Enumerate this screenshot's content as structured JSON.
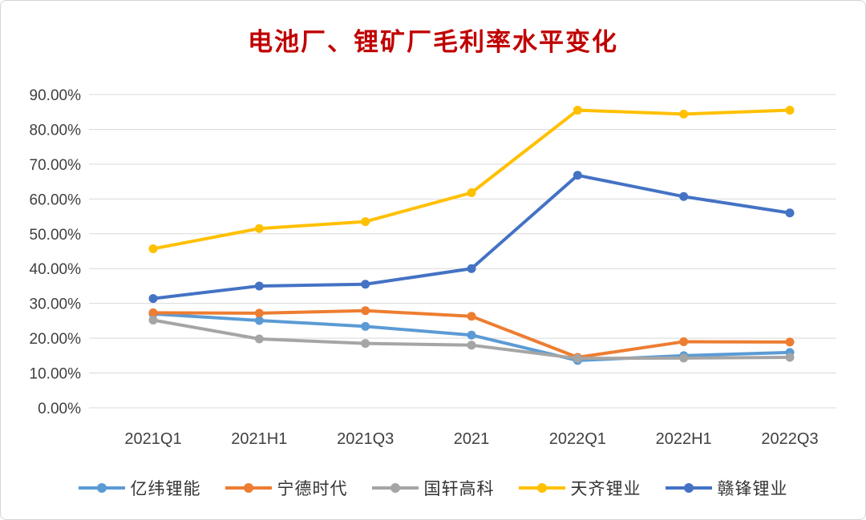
{
  "chart_data": {
    "type": "line",
    "title": "电池厂、锂矿厂毛利率水平变化",
    "title_color": "#C00000",
    "categories": [
      "2021Q1",
      "2021H1",
      "2021Q3",
      "2021",
      "2022Q1",
      "2022H1",
      "2022Q3"
    ],
    "xlabel": "",
    "ylabel": "",
    "ylim": [
      0,
      90
    ],
    "grid": "horizontal",
    "legend_position": "bottom",
    "gridline_color": "#D9D9D9",
    "y_ticks": [
      {
        "label": "0.00%",
        "value": 0
      },
      {
        "label": "10.00%",
        "value": 10
      },
      {
        "label": "20.00%",
        "value": 20
      },
      {
        "label": "30.00%",
        "value": 30
      },
      {
        "label": "40.00%",
        "value": 40
      },
      {
        "label": "50.00%",
        "value": 50
      },
      {
        "label": "60.00%",
        "value": 60
      },
      {
        "label": "70.00%",
        "value": 70
      },
      {
        "label": "80.00%",
        "value": 80
      },
      {
        "label": "90.00%",
        "value": 90
      }
    ],
    "series": [
      {
        "name": "亿纬锂能",
        "color": "#5B9BD5",
        "values": [
          27.0,
          25.1,
          23.4,
          20.9,
          13.6,
          15.0,
          15.9
        ]
      },
      {
        "name": "宁德时代",
        "color": "#ED7D31",
        "values": [
          27.3,
          27.2,
          27.9,
          26.3,
          14.5,
          19.0,
          18.9
        ]
      },
      {
        "name": "国轩高科",
        "color": "#A5A5A5",
        "values": [
          25.2,
          19.8,
          18.5,
          18.0,
          14.2,
          14.3,
          14.5
        ]
      },
      {
        "name": "天齐锂业",
        "color": "#FFC000",
        "values": [
          45.7,
          51.5,
          53.5,
          61.8,
          85.5,
          84.4,
          85.5
        ]
      },
      {
        "name": "赣锋锂业",
        "color": "#4472C4",
        "values": [
          31.4,
          35.0,
          35.5,
          40.0,
          66.8,
          60.7,
          56.0
        ]
      }
    ]
  }
}
